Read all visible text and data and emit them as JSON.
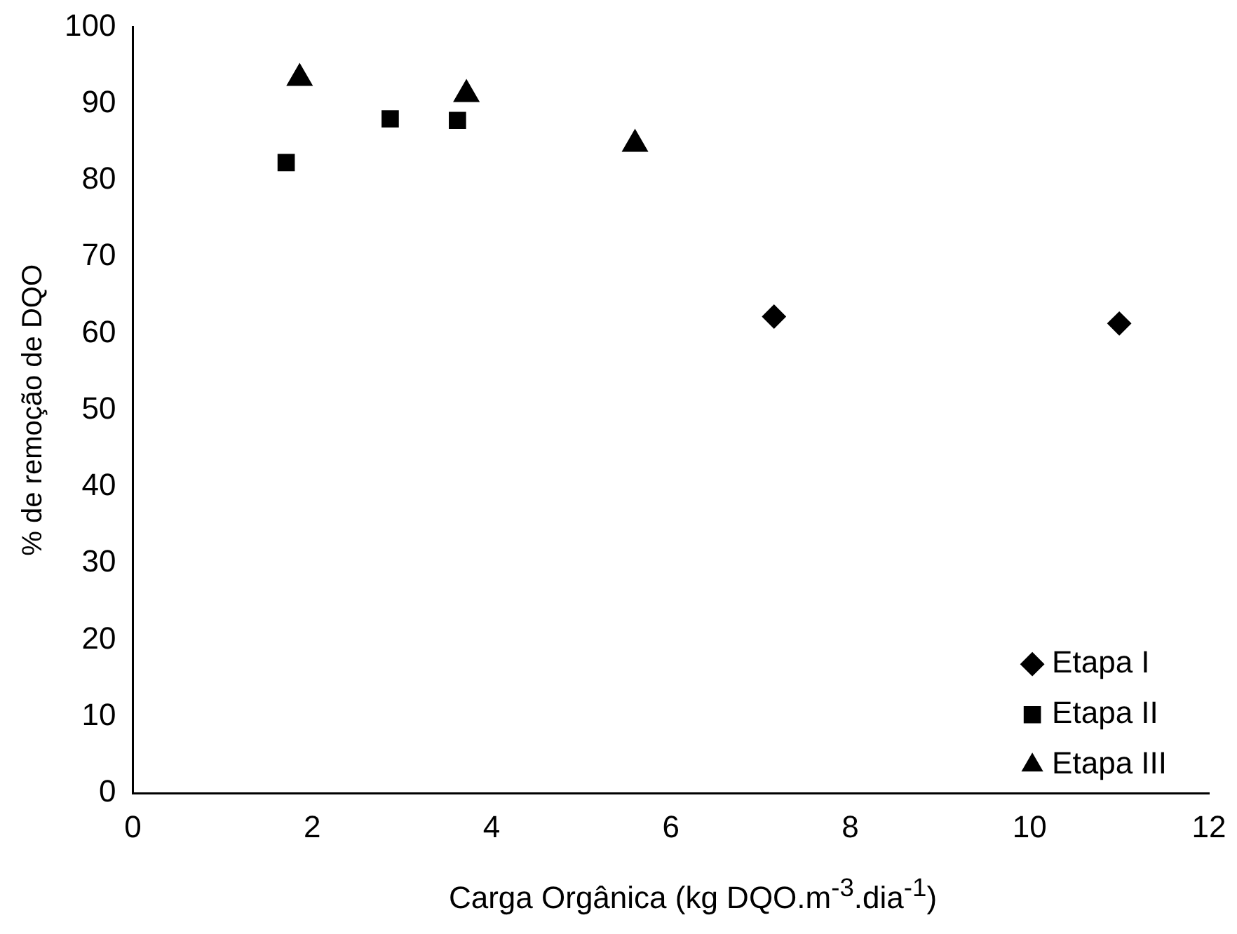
{
  "chart_data": {
    "type": "scatter",
    "xlabel": "Carga Orgânica (kg DQO.m$^{-3}$.dia$^{-1}$)",
    "ylabel": "% de remoção de DQO",
    "xlim": [
      0,
      12
    ],
    "xticks": [
      0,
      2,
      4,
      6,
      8,
      10,
      12
    ],
    "ylim": [
      0,
      100
    ],
    "yticks": [
      0,
      10,
      20,
      30,
      40,
      50,
      60,
      70,
      80,
      90,
      100
    ],
    "grid": false,
    "legend": "bottom right",
    "series": [
      {
        "name": "Etapa I",
        "color": "#000000",
        "marker": "diamond",
        "x": [
          7.15,
          11.0
        ],
        "values": [
          62.2,
          61.3
        ]
      },
      {
        "name": "Etapa II",
        "color": "#000000",
        "marker": "square",
        "x": [
          1.71,
          2.87,
          3.62
        ],
        "values": [
          82.3,
          88.0,
          87.8
        ]
      },
      {
        "name": "Etapa III",
        "color": "#000000",
        "marker": "triangle",
        "x": [
          1.86,
          3.72,
          5.6
        ],
        "values": [
          93.3,
          91.2,
          84.7
        ]
      }
    ]
  }
}
